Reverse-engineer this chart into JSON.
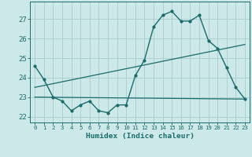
{
  "title": "",
  "xlabel": "Humidex (Indice chaleur)",
  "x_ticks": [
    0,
    1,
    2,
    3,
    4,
    5,
    6,
    7,
    8,
    9,
    10,
    11,
    12,
    13,
    14,
    15,
    16,
    17,
    18,
    19,
    20,
    21,
    22,
    23
  ],
  "ylim": [
    21.7,
    27.9
  ],
  "xlim": [
    -0.5,
    23.5
  ],
  "yticks": [
    22,
    23,
    24,
    25,
    26,
    27
  ],
  "background_color": "#cce8e8",
  "grid_color": "#aacccc",
  "line_color": "#1a6b6b",
  "line1_x": [
    0,
    1,
    2,
    3,
    4,
    5,
    6,
    7,
    8,
    9,
    10,
    11,
    12,
    13,
    14,
    15,
    16,
    17,
    18,
    19,
    20,
    21,
    22,
    23
  ],
  "line1_y": [
    24.6,
    23.9,
    23.0,
    22.8,
    22.3,
    22.6,
    22.8,
    22.3,
    22.2,
    22.6,
    22.6,
    24.1,
    24.9,
    26.6,
    27.2,
    27.4,
    26.9,
    26.9,
    27.2,
    25.9,
    25.5,
    24.5,
    23.5,
    22.9
  ],
  "line2_x": [
    0,
    23
  ],
  "line2_y": [
    23.0,
    22.9
  ],
  "line3_x": [
    0,
    23
  ],
  "line3_y": [
    23.5,
    25.7
  ]
}
